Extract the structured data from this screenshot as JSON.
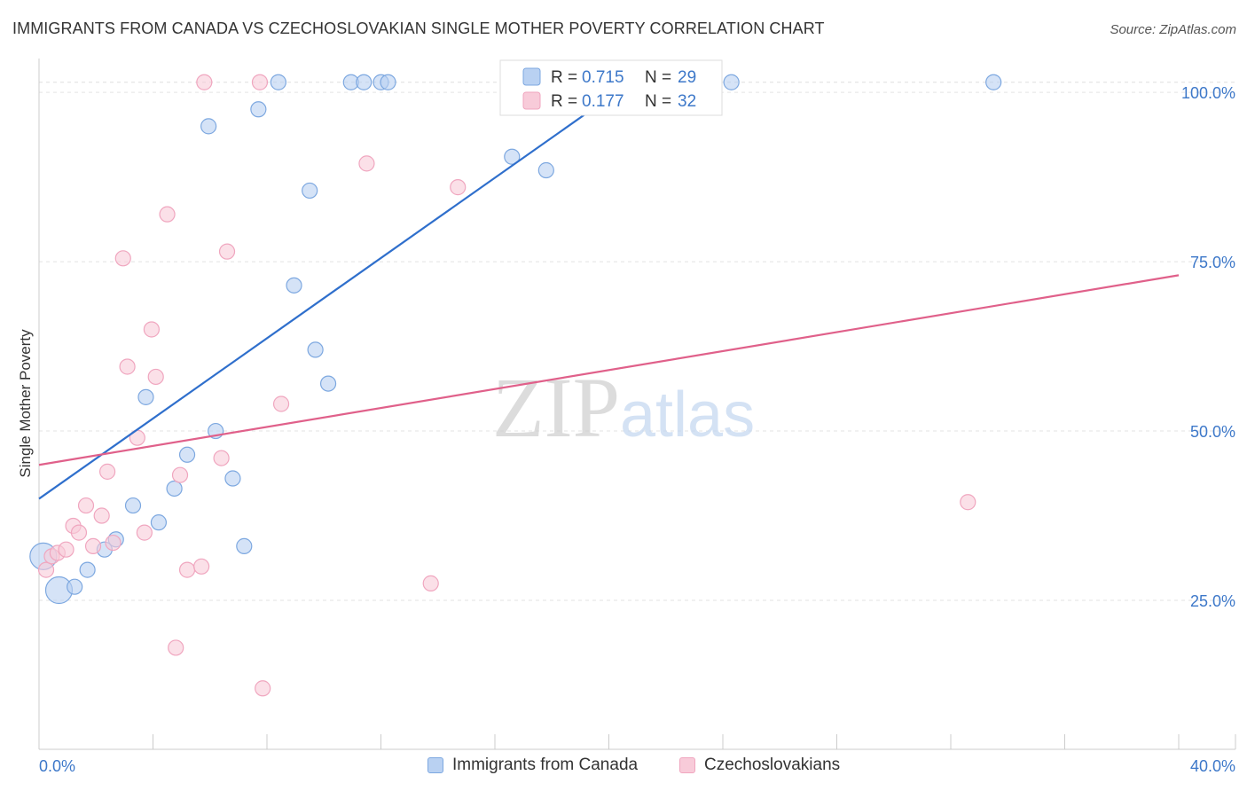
{
  "chart_data": {
    "type": "scatter",
    "title": "IMMIGRANTS FROM CANADA VS CZECHOSLOVAKIAN SINGLE MOTHER POVERTY CORRELATION CHART",
    "source": "Source: ZipAtlas.com",
    "ylabel": "Single Mother Poverty",
    "xlim": [
      0,
      40
    ],
    "ylim": [
      3,
      105
    ],
    "x_tick_labels": [
      "0.0%",
      "40.0%"
    ],
    "y_ticks": [
      25,
      50,
      75,
      100
    ],
    "y_tick_labels": [
      "25.0%",
      "50.0%",
      "75.0%",
      "100.0%"
    ],
    "watermark": "ZIPatlas",
    "legend_stats": [
      {
        "r_label": "R =",
        "r_value": "0.715",
        "n_label": "N =",
        "n_value": "29"
      },
      {
        "r_label": "R =",
        "r_value": "0.177",
        "n_label": "N =",
        "n_value": "32"
      }
    ],
    "series": [
      {
        "name": "Immigrants from Canada",
        "color": "#7da8e0",
        "fill": "#b9d1f2",
        "line_color": "#2f6fcc",
        "trend": [
          [
            0,
            40
          ],
          [
            21.1,
            102.5
          ]
        ],
        "points": [
          {
            "x": 0.15,
            "y": 31.5,
            "big": true
          },
          {
            "x": 0.7,
            "y": 26.5,
            "big": true
          },
          {
            "x": 1.25,
            "y": 27.0
          },
          {
            "x": 1.7,
            "y": 29.5
          },
          {
            "x": 2.3,
            "y": 32.5
          },
          {
            "x": 2.7,
            "y": 34.0
          },
          {
            "x": 3.3,
            "y": 39.0
          },
          {
            "x": 3.75,
            "y": 55.0
          },
          {
            "x": 4.2,
            "y": 36.5
          },
          {
            "x": 4.75,
            "y": 41.5
          },
          {
            "x": 5.2,
            "y": 46.5
          },
          {
            "x": 5.95,
            "y": 95.0
          },
          {
            "x": 6.2,
            "y": 50.0
          },
          {
            "x": 6.8,
            "y": 43.0
          },
          {
            "x": 7.2,
            "y": 33.0
          },
          {
            "x": 7.7,
            "y": 97.5
          },
          {
            "x": 8.4,
            "y": 101.5
          },
          {
            "x": 8.95,
            "y": 71.5
          },
          {
            "x": 9.5,
            "y": 85.5
          },
          {
            "x": 9.7,
            "y": 62.0
          },
          {
            "x": 10.15,
            "y": 57.0
          },
          {
            "x": 10.95,
            "y": 101.5
          },
          {
            "x": 11.4,
            "y": 101.5
          },
          {
            "x": 12.0,
            "y": 101.5
          },
          {
            "x": 12.25,
            "y": 101.5
          },
          {
            "x": 16.6,
            "y": 90.5
          },
          {
            "x": 17.8,
            "y": 88.5
          },
          {
            "x": 24.3,
            "y": 101.5
          },
          {
            "x": 33.5,
            "y": 101.5
          }
        ]
      },
      {
        "name": "Czechoslovakians",
        "color": "#f0a6bf",
        "fill": "#f8cbd9",
        "line_color": "#e0608a",
        "trend": [
          [
            0,
            45
          ],
          [
            40,
            73
          ]
        ],
        "points": [
          {
            "x": 0.25,
            "y": 29.5
          },
          {
            "x": 0.45,
            "y": 31.5
          },
          {
            "x": 0.65,
            "y": 32.0
          },
          {
            "x": 0.95,
            "y": 32.5
          },
          {
            "x": 1.2,
            "y": 36.0
          },
          {
            "x": 1.4,
            "y": 35.0
          },
          {
            "x": 1.65,
            "y": 39.0
          },
          {
            "x": 1.9,
            "y": 33.0
          },
          {
            "x": 2.2,
            "y": 37.5
          },
          {
            "x": 2.4,
            "y": 44.0
          },
          {
            "x": 2.6,
            "y": 33.5
          },
          {
            "x": 2.95,
            "y": 75.5
          },
          {
            "x": 3.1,
            "y": 59.5
          },
          {
            "x": 3.45,
            "y": 49.0
          },
          {
            "x": 3.7,
            "y": 35.0
          },
          {
            "x": 3.95,
            "y": 65.0
          },
          {
            "x": 4.1,
            "y": 58.0
          },
          {
            "x": 4.5,
            "y": 82.0
          },
          {
            "x": 4.8,
            "y": 18.0
          },
          {
            "x": 4.95,
            "y": 43.5
          },
          {
            "x": 5.2,
            "y": 29.5
          },
          {
            "x": 5.7,
            "y": 30.0
          },
          {
            "x": 5.8,
            "y": 101.5
          },
          {
            "x": 6.4,
            "y": 46.0
          },
          {
            "x": 6.6,
            "y": 76.5
          },
          {
            "x": 7.75,
            "y": 101.5
          },
          {
            "x": 7.85,
            "y": 12.0
          },
          {
            "x": 8.5,
            "y": 54.0
          },
          {
            "x": 11.5,
            "y": 89.5
          },
          {
            "x": 13.75,
            "y": 27.5
          },
          {
            "x": 14.7,
            "y": 86.0
          },
          {
            "x": 32.6,
            "y": 39.5
          }
        ]
      }
    ]
  }
}
